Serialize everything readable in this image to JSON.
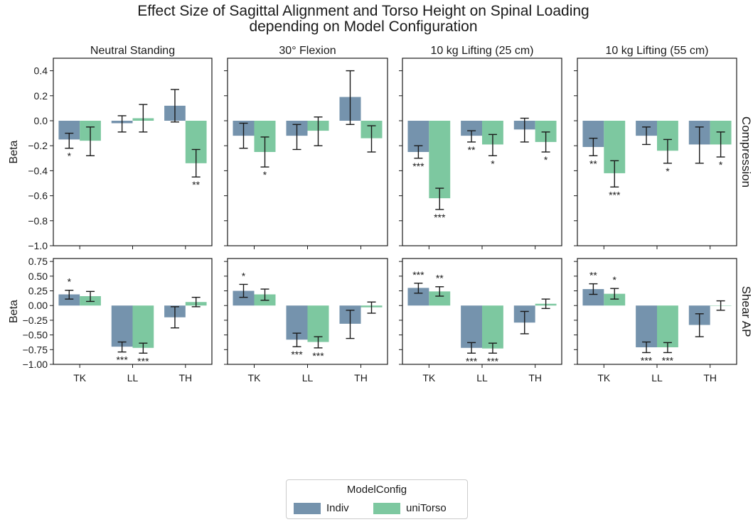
{
  "chart_data": {
    "type": "bar",
    "title": "Effect Size of Sagittal Alignment and Torso Height on Spinal Loading",
    "subtitle": "depending on Model Configuration",
    "categories": [
      "TK",
      "LL",
      "TH"
    ],
    "columns": [
      "Neutral Standing",
      "30° Flexion",
      "10 kg Lifting (25 cm)",
      "10 kg Lifting (55 cm)"
    ],
    "legend": {
      "title": "ModelConfig",
      "placement": "bottom-center",
      "entries": [
        {
          "name": "Indiv",
          "color": "#7593ad"
        },
        {
          "name": "uniTorso",
          "color": "#7dc8a0"
        }
      ]
    },
    "rows": [
      {
        "label": "Compression",
        "ylabel": "Beta",
        "ylim": [
          -1.0,
          0.5
        ],
        "yticks": [
          0.4,
          0.2,
          0.0,
          -0.2,
          -0.4,
          -0.6,
          -0.8,
          -1.0
        ],
        "ytick_labels": [
          "0.4",
          "0.2",
          "0.0",
          "−0.2",
          "−0.4",
          "−0.6",
          "−0.8",
          "−1.0"
        ],
        "panels": [
          {
            "column": "Neutral Standing",
            "series": [
              {
                "name": "Indiv",
                "values": [
                  -0.15,
                  -0.02,
                  0.12
                ],
                "err_low": [
                  -0.22,
                  -0.09,
                  -0.01
                ],
                "err_high": [
                  -0.1,
                  0.04,
                  0.25
                ],
                "sig": [
                  "*",
                  "",
                  ""
                ]
              },
              {
                "name": "uniTorso",
                "values": [
                  -0.16,
                  0.02,
                  -0.34
                ],
                "err_low": [
                  -0.28,
                  -0.09,
                  -0.45
                ],
                "err_high": [
                  -0.05,
                  0.13,
                  -0.23
                ],
                "sig": [
                  "",
                  "",
                  "**"
                ]
              }
            ]
          },
          {
            "column": "30° Flexion",
            "series": [
              {
                "name": "Indiv",
                "values": [
                  -0.12,
                  -0.12,
                  0.19
                ],
                "err_low": [
                  -0.22,
                  -0.23,
                  -0.03
                ],
                "err_high": [
                  -0.02,
                  -0.03,
                  0.4
                ],
                "sig": [
                  "",
                  "",
                  ""
                ]
              },
              {
                "name": "uniTorso",
                "values": [
                  -0.25,
                  -0.08,
                  -0.14
                ],
                "err_low": [
                  -0.37,
                  -0.2,
                  -0.25
                ],
                "err_high": [
                  -0.13,
                  0.03,
                  -0.04
                ],
                "sig": [
                  "*",
                  "",
                  ""
                ]
              }
            ]
          },
          {
            "column": "10 kg Lifting (25 cm)",
            "series": [
              {
                "name": "Indiv",
                "values": [
                  -0.25,
                  -0.12,
                  -0.07
                ],
                "err_low": [
                  -0.3,
                  -0.17,
                  -0.17
                ],
                "err_high": [
                  -0.2,
                  -0.08,
                  0.02
                ],
                "sig": [
                  "***",
                  "**",
                  ""
                ]
              },
              {
                "name": "uniTorso",
                "values": [
                  -0.62,
                  -0.19,
                  -0.17
                ],
                "err_low": [
                  -0.71,
                  -0.28,
                  -0.25
                ],
                "err_high": [
                  -0.54,
                  -0.11,
                  -0.09
                ],
                "sig": [
                  "***",
                  "*",
                  "*"
                ]
              }
            ]
          },
          {
            "column": "10 kg Lifting (55 cm)",
            "series": [
              {
                "name": "Indiv",
                "values": [
                  -0.21,
                  -0.12,
                  -0.19
                ],
                "err_low": [
                  -0.28,
                  -0.19,
                  -0.34
                ],
                "err_high": [
                  -0.14,
                  -0.05,
                  -0.05
                ],
                "sig": [
                  "**",
                  "",
                  ""
                ]
              },
              {
                "name": "uniTorso",
                "values": [
                  -0.42,
                  -0.24,
                  -0.19
                ],
                "err_low": [
                  -0.53,
                  -0.34,
                  -0.29
                ],
                "err_high": [
                  -0.32,
                  -0.15,
                  -0.09
                ],
                "sig": [
                  "***",
                  "*",
                  "*"
                ]
              }
            ]
          }
        ]
      },
      {
        "label": "Shear AP",
        "ylabel": "Beta",
        "ylim": [
          -1.0,
          0.8
        ],
        "yticks": [
          0.75,
          0.5,
          0.25,
          0.0,
          -0.25,
          -0.5,
          -0.75,
          -1.0
        ],
        "ytick_labels": [
          "0.75",
          "0.50",
          "0.25",
          "0.00",
          "−0.25",
          "−0.50",
          "−0.75",
          "−1.00"
        ],
        "panels": [
          {
            "column": "Neutral Standing",
            "series": [
              {
                "name": "Indiv",
                "values": [
                  0.19,
                  -0.7,
                  -0.2
                ],
                "err_low": [
                  0.11,
                  -0.79,
                  -0.38
                ],
                "err_high": [
                  0.26,
                  -0.62,
                  -0.02
                ],
                "sig": [
                  "*",
                  "***",
                  ""
                ]
              },
              {
                "name": "uniTorso",
                "values": [
                  0.16,
                  -0.72,
                  0.06
                ],
                "err_low": [
                  0.07,
                  -0.81,
                  -0.02
                ],
                "err_high": [
                  0.24,
                  -0.64,
                  0.14
                ],
                "sig": [
                  "",
                  "***",
                  ""
                ]
              }
            ]
          },
          {
            "column": "30° Flexion",
            "series": [
              {
                "name": "Indiv",
                "values": [
                  0.25,
                  -0.58,
                  -0.31
                ],
                "err_low": [
                  0.14,
                  -0.7,
                  -0.56
                ],
                "err_high": [
                  0.36,
                  -0.47,
                  -0.08
                ],
                "sig": [
                  "*",
                  "***",
                  ""
                ]
              },
              {
                "name": "uniTorso",
                "values": [
                  0.19,
                  -0.62,
                  -0.03
                ],
                "err_low": [
                  0.09,
                  -0.72,
                  -0.13
                ],
                "err_high": [
                  0.28,
                  -0.53,
                  0.06
                ],
                "sig": [
                  "",
                  "***",
                  ""
                ]
              }
            ]
          },
          {
            "column": "10 kg Lifting (25 cm)",
            "series": [
              {
                "name": "Indiv",
                "values": [
                  0.3,
                  -0.72,
                  -0.29
                ],
                "err_low": [
                  0.21,
                  -0.81,
                  -0.48
                ],
                "err_high": [
                  0.38,
                  -0.63,
                  -0.1
                ],
                "sig": [
                  "***",
                  "***",
                  ""
                ]
              },
              {
                "name": "uniTorso",
                "values": [
                  0.24,
                  -0.73,
                  0.03
                ],
                "err_low": [
                  0.16,
                  -0.81,
                  -0.05
                ],
                "err_high": [
                  0.32,
                  -0.64,
                  0.11
                ],
                "sig": [
                  "**",
                  "***",
                  ""
                ]
              }
            ]
          },
          {
            "column": "10 kg Lifting (55 cm)",
            "series": [
              {
                "name": "Indiv",
                "values": [
                  0.28,
                  -0.71,
                  -0.33
                ],
                "err_low": [
                  0.19,
                  -0.8,
                  -0.53
                ],
                "err_high": [
                  0.37,
                  -0.62,
                  -0.14
                ],
                "sig": [
                  "**",
                  "***",
                  ""
                ]
              },
              {
                "name": "uniTorso",
                "values": [
                  0.2,
                  -0.71,
                  0.0
                ],
                "err_low": [
                  0.11,
                  -0.8,
                  -0.08
                ],
                "err_high": [
                  0.29,
                  -0.63,
                  0.08
                ],
                "sig": [
                  "*",
                  "***",
                  ""
                ]
              }
            ]
          }
        ]
      }
    ]
  }
}
